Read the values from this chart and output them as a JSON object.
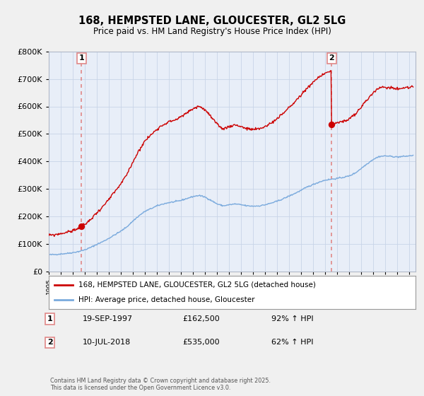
{
  "title": "168, HEMPSTED LANE, GLOUCESTER, GL2 5LG",
  "subtitle": "Price paid vs. HM Land Registry's House Price Index (HPI)",
  "legend_line1": "168, HEMPSTED LANE, GLOUCESTER, GL2 5LG (detached house)",
  "legend_line2": "HPI: Average price, detached house, Gloucester",
  "point1_label": "1",
  "point1_date": "19-SEP-1997",
  "point1_price": "£162,500",
  "point1_hpi": "92% ↑ HPI",
  "point1_year": 1997.72,
  "point1_value": 162500,
  "point2_label": "2",
  "point2_date": "10-JUL-2018",
  "point2_price": "£535,000",
  "point2_hpi": "62% ↑ HPI",
  "point2_year": 2018.52,
  "point2_value": 535000,
  "red_color": "#cc0000",
  "blue_color": "#7aaadd",
  "dashed_color": "#e08888",
  "background_color": "#f0f0f0",
  "plot_bg_color": "#e8eef8",
  "footer": "Contains HM Land Registry data © Crown copyright and database right 2025.\nThis data is licensed under the Open Government Licence v3.0.",
  "ylim": [
    0,
    800000
  ],
  "xlim_start": 1995.0,
  "xlim_end": 2025.5
}
